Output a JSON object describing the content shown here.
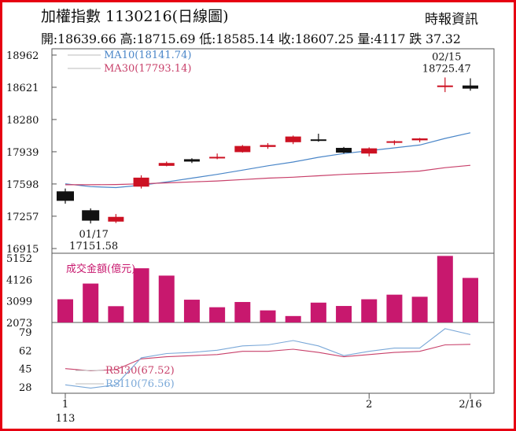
{
  "header": {
    "title": "加權指數 1130216(日線圖)",
    "source": "時報資訊",
    "ohlc": "開:18639.66 高:18715.69 低:18585.14 收:18607.25 量:4117 跌 37.32"
  },
  "colors": {
    "frame": "#e60012",
    "up": "#cc1122",
    "down": "#111111",
    "ma10": "#4a86c8",
    "ma30": "#c8406a",
    "volume": "#c8186e",
    "rsi30": "#c8406a",
    "rsi10": "#7aa8d8"
  },
  "chart_data": [
    {
      "type": "candlestick",
      "name": "price",
      "yticks": [
        18962,
        18621,
        18280,
        17939,
        17598,
        17257,
        16915
      ],
      "ylim": [
        16915,
        18962
      ],
      "x_labels": [
        {
          "index": 0,
          "label": "1"
        },
        {
          "index": 0,
          "label": "113"
        },
        {
          "index": 12,
          "label": "2"
        },
        {
          "index": 16,
          "label": "2/16"
        }
      ],
      "candles": [
        {
          "o": 17520,
          "h": 17550,
          "l": 17390,
          "c": 17420
        },
        {
          "o": 17320,
          "h": 17340,
          "l": 17180,
          "c": 17210
        },
        {
          "o": 17200,
          "h": 17280,
          "l": 17185,
          "c": 17250
        },
        {
          "o": 17570,
          "h": 17690,
          "l": 17550,
          "c": 17665
        },
        {
          "o": 17790,
          "h": 17835,
          "l": 17785,
          "c": 17820
        },
        {
          "o": 17860,
          "h": 17870,
          "l": 17820,
          "c": 17835
        },
        {
          "o": 17880,
          "h": 17920,
          "l": 17860,
          "c": 17885
        },
        {
          "o": 17935,
          "h": 18010,
          "l": 17930,
          "c": 18000
        },
        {
          "o": 17990,
          "h": 18030,
          "l": 17970,
          "c": 18010
        },
        {
          "o": 18040,
          "h": 18110,
          "l": 18020,
          "c": 18100
        },
        {
          "o": 18070,
          "h": 18130,
          "l": 18045,
          "c": 18060
        },
        {
          "o": 17980,
          "h": 17990,
          "l": 17920,
          "c": 17930
        },
        {
          "o": 17920,
          "h": 17985,
          "l": 17890,
          "c": 17975
        },
        {
          "o": 18035,
          "h": 18060,
          "l": 18010,
          "c": 18050
        },
        {
          "o": 18060,
          "h": 18085,
          "l": 18040,
          "c": 18080
        },
        {
          "o": 18635,
          "h": 18725,
          "l": 18570,
          "c": 18640
        },
        {
          "o": 18640,
          "h": 18716,
          "l": 18585,
          "c": 18607
        }
      ],
      "series": [
        {
          "name": "MA10(18141.74)",
          "values": [
            17600,
            17570,
            17560,
            17585,
            17620,
            17660,
            17700,
            17745,
            17790,
            17830,
            17880,
            17920,
            17950,
            17980,
            18010,
            18080,
            18140
          ]
        },
        {
          "name": "MA30(17793.14)",
          "values": [
            17590,
            17590,
            17592,
            17600,
            17610,
            17620,
            17630,
            17645,
            17660,
            17670,
            17685,
            17700,
            17710,
            17720,
            17735,
            17770,
            17795
          ]
        }
      ],
      "annotations": [
        {
          "index": 1,
          "lines": [
            "01/17",
            "17151.58"
          ],
          "position": "below"
        },
        {
          "index": 15,
          "lines": [
            "02/15",
            "18725.47"
          ],
          "position": "above"
        }
      ]
    },
    {
      "type": "bar",
      "name": "volume",
      "title": "成交金額(億元)",
      "yticks": [
        5152,
        4126,
        3099,
        2073
      ],
      "ylim": [
        2073,
        5152
      ],
      "values": [
        3180,
        3930,
        2850,
        4660,
        4310,
        3160,
        2800,
        3050,
        2650,
        2380,
        3020,
        2860,
        3180,
        3400,
        3300,
        5250,
        4200
      ]
    },
    {
      "type": "line",
      "name": "rsi",
      "yticks": [
        79,
        62,
        45,
        28
      ],
      "ylim": [
        28,
        79
      ],
      "series": [
        {
          "name": "RSI30(67.52)",
          "values": [
            45,
            43,
            44,
            54,
            56,
            57,
            58,
            61,
            61,
            63,
            60,
            56,
            58,
            60,
            61,
            67,
            67.5
          ]
        },
        {
          "name": "RSI10(76.56)",
          "values": [
            30,
            27,
            30,
            55,
            59,
            60,
            62,
            66,
            67,
            71,
            66,
            57,
            61,
            64,
            64,
            82,
            76.5
          ]
        }
      ]
    }
  ]
}
